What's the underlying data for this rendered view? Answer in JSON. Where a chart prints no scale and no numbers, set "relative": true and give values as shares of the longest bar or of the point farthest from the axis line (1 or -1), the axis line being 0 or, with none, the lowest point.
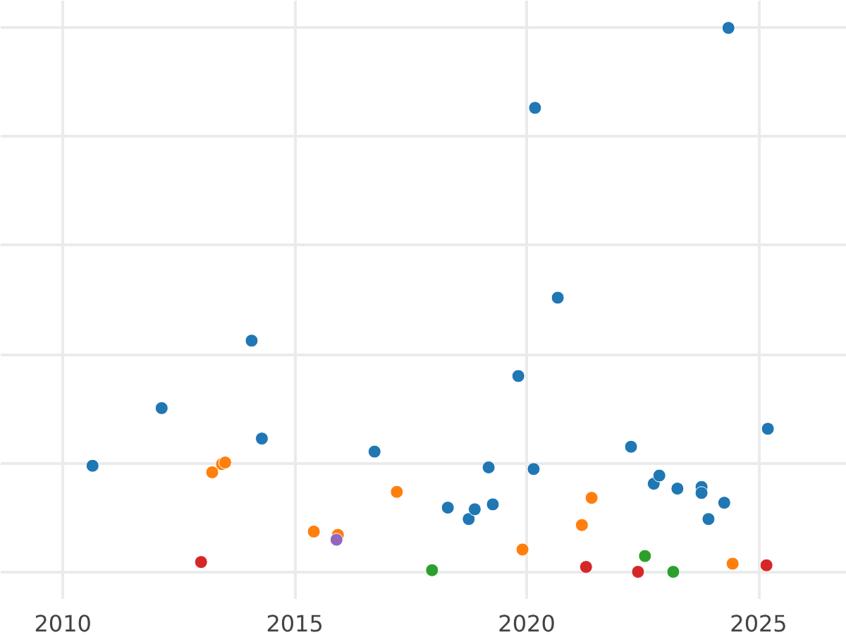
{
  "chart_data": {
    "type": "scatter",
    "relative": true,
    "xlim": [
      2008.66,
      2026.9
    ],
    "xticks": [
      2010,
      2015,
      2020,
      2025
    ],
    "grid": true,
    "marker": "circle",
    "series": [
      {
        "color": "#1f77b4",
        "x": [
          2010.64,
          2012.13,
          2014.07,
          2014.29,
          2016.72,
          2018.3,
          2018.75,
          2018.88,
          2019.18,
          2019.27,
          2019.82,
          2020.15,
          2020.18,
          2020.67,
          2022.25,
          2022.74,
          2022.86,
          2023.25,
          2023.77,
          2023.77,
          2023.92,
          2024.26,
          2024.35,
          2025.2
        ],
        "values": [
          0.195,
          0.301,
          0.425,
          0.245,
          0.221,
          0.118,
          0.097,
          0.115,
          0.192,
          0.124,
          0.36,
          0.189,
          0.853,
          0.504,
          0.23,
          0.162,
          0.177,
          0.153,
          0.156,
          0.145,
          0.097,
          0.127,
          1,
          0.263
        ]
      },
      {
        "color": "#ff7f0e",
        "x": [
          2013.22,
          2013.43,
          2013.5,
          2015.41,
          2015.93,
          2017.2,
          2019.91,
          2021.19,
          2021.4,
          2024.44
        ],
        "values": [
          0.183,
          0.198,
          0.201,
          0.074,
          0.068,
          0.147,
          0.041,
          0.086,
          0.136,
          0.015
        ]
      },
      {
        "color": "#d62728",
        "x": [
          2012.98,
          2021.28,
          2022.4,
          2025.17
        ],
        "values": [
          0.018,
          0.009,
          0,
          0.012
        ]
      },
      {
        "color": "#2ca02c",
        "x": [
          2017.96,
          2022.55,
          2023.16
        ],
        "values": [
          0.003,
          0.029,
          0
        ]
      },
      {
        "color": "#9467bd",
        "x": [
          2015.9
        ],
        "values": [
          0.059
        ]
      }
    ]
  }
}
